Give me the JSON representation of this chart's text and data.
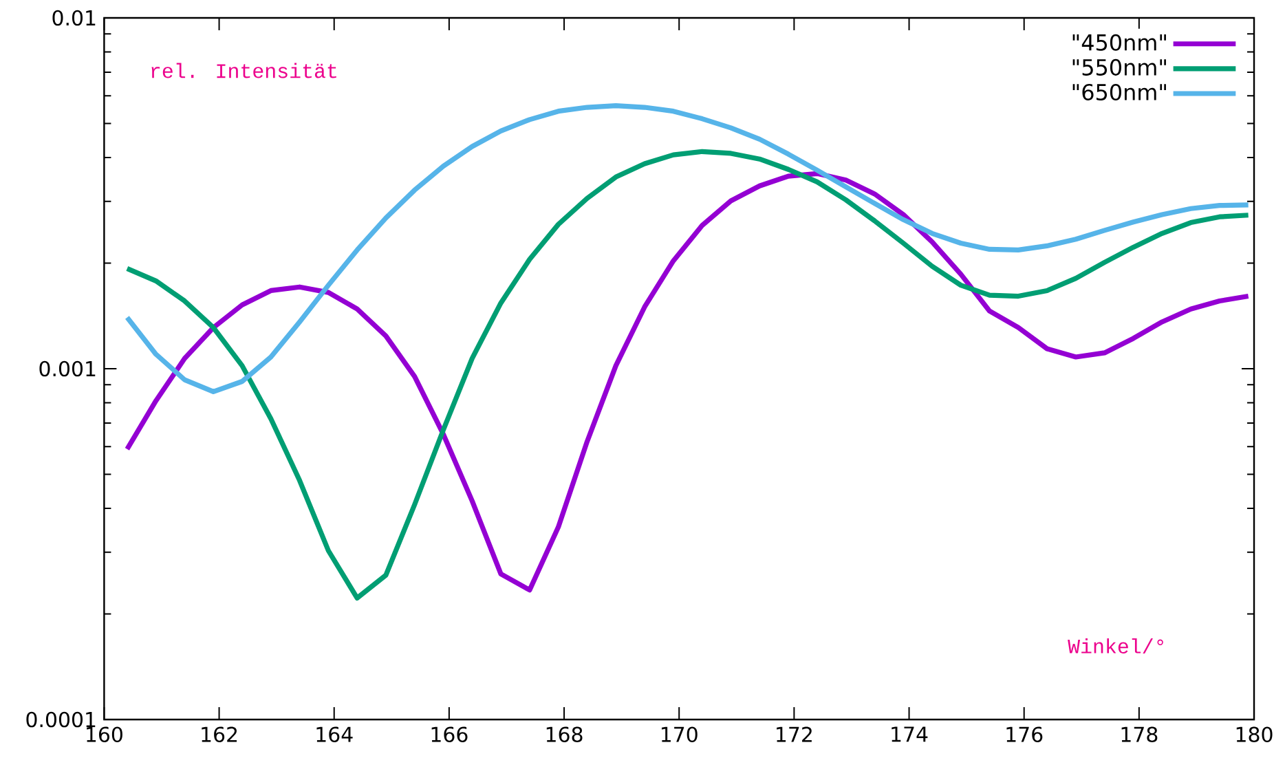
{
  "chart_data": {
    "type": "line",
    "xlabel": "Winkel/°",
    "ylabel": "rel. Intensität",
    "x": [
      160.4,
      160.9,
      161.4,
      161.9,
      162.4,
      162.9,
      163.4,
      163.9,
      164.4,
      164.9,
      165.4,
      165.9,
      166.4,
      166.9,
      167.4,
      167.9,
      168.4,
      168.9,
      169.4,
      169.9,
      170.4,
      170.9,
      171.4,
      171.9,
      172.4,
      172.9,
      173.4,
      173.9,
      174.4,
      174.9,
      175.4,
      175.9,
      176.4,
      176.9,
      177.4,
      177.9,
      178.4,
      178.9,
      179.4,
      179.9
    ],
    "series": [
      {
        "name": "\"450nm\"",
        "color": "#9400d3",
        "values": [
          0.00059,
          0.00081,
          0.00107,
          0.00131,
          0.00152,
          0.00167,
          0.00171,
          0.00165,
          0.00148,
          0.00124,
          0.00095,
          0.00065,
          0.00042,
          0.00026,
          0.000234,
          0.000354,
          0.00062,
          0.00102,
          0.0015,
          0.00203,
          0.00256,
          0.00301,
          0.00332,
          0.00354,
          0.0036,
          0.00345,
          0.00315,
          0.00275,
          0.0023,
          0.00186,
          0.00146,
          0.00131,
          0.00114,
          0.00108,
          0.00111,
          0.00122,
          0.00136,
          0.00148,
          0.00156,
          0.00161
        ]
      },
      {
        "name": "\"550nm\"",
        "color": "#009e73",
        "values": [
          0.00193,
          0.00178,
          0.00156,
          0.00131,
          0.00102,
          0.00072,
          0.00048,
          0.000303,
          0.000222,
          0.000258,
          0.00041,
          0.00067,
          0.00107,
          0.00154,
          0.00205,
          0.00258,
          0.00306,
          0.00352,
          0.00384,
          0.00407,
          0.00416,
          0.00411,
          0.00396,
          0.0037,
          0.00341,
          0.00303,
          0.00264,
          0.00228,
          0.00196,
          0.00173,
          0.00162,
          0.00161,
          0.00167,
          0.00181,
          0.00201,
          0.00222,
          0.00243,
          0.00261,
          0.00271,
          0.00274
        ]
      },
      {
        "name": "\"650nm\"",
        "color": "#56b4e9",
        "values": [
          0.0014,
          0.0011,
          0.00093,
          0.00086,
          0.00092,
          0.00108,
          0.00136,
          0.00173,
          0.00218,
          0.00269,
          0.00323,
          0.00378,
          0.0043,
          0.00476,
          0.00513,
          0.00542,
          0.00556,
          0.00562,
          0.00556,
          0.00542,
          0.00516,
          0.00486,
          0.00451,
          0.00409,
          0.00368,
          0.0033,
          0.00296,
          0.00266,
          0.00243,
          0.00228,
          0.00219,
          0.00218,
          0.00224,
          0.00234,
          0.00248,
          0.00262,
          0.00275,
          0.00286,
          0.00292,
          0.00293
        ]
      }
    ],
    "xlim": [
      160,
      180
    ],
    "xticks": [
      160,
      162,
      164,
      166,
      168,
      170,
      172,
      174,
      176,
      178,
      180
    ],
    "ylim": [
      0.0001,
      0.01
    ],
    "yticks": [
      0.0001,
      0.001,
      0.01
    ],
    "log": true,
    "legend": "top right",
    "grid": false,
    "marker": "none",
    "line_style": "solid"
  }
}
